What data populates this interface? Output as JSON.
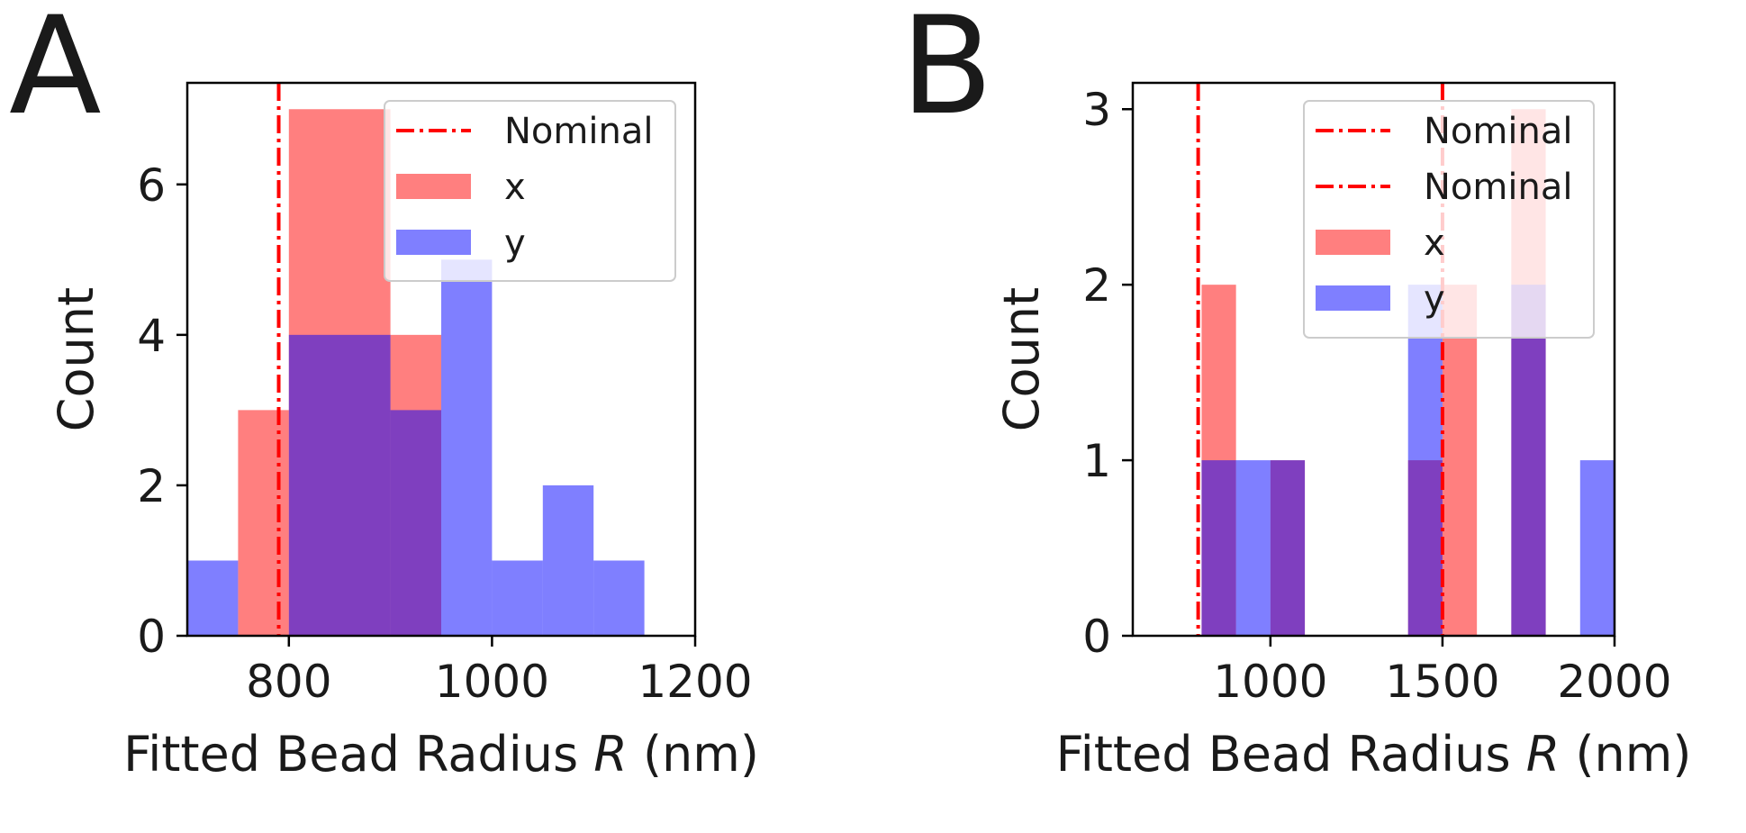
{
  "figure": {
    "panels": [
      "A",
      "B"
    ]
  },
  "colors": {
    "x": "#ff0000",
    "y": "#0000ff",
    "nominal": "#ff0000",
    "bar_alpha": 0.5,
    "axis": "#000000"
  },
  "chart_data": [
    {
      "panel": "A",
      "type": "bar",
      "histogram": true,
      "xlabel": "Fitted Bead Radius R (nm)",
      "xlabel_parts": {
        "before": "Fitted Bead Radius ",
        "italic": "R",
        "after": " (nm)"
      },
      "ylabel": "Count",
      "xlim": [
        700,
        1200
      ],
      "ylim": [
        0,
        7.35
      ],
      "xticks": [
        800,
        1000,
        1200
      ],
      "yticks": [
        0,
        2,
        4,
        6
      ],
      "legend_position": "upper right",
      "grid": false,
      "nominal_lines": [
        790
      ],
      "legend": [
        "Nominal",
        "x",
        "y"
      ],
      "series": [
        {
          "name": "x",
          "color": "#ff0000",
          "bins": [
            [
              750,
              800,
              3
            ],
            [
              800,
              900,
              7
            ],
            [
              900,
              950,
              4
            ]
          ]
        },
        {
          "name": "y",
          "color": "#0000ff",
          "bins": [
            [
              700,
              750,
              1
            ],
            [
              800,
              900,
              4
            ],
            [
              900,
              950,
              3
            ],
            [
              950,
              1000,
              5
            ],
            [
              1000,
              1050,
              1
            ],
            [
              1050,
              1100,
              2
            ],
            [
              1100,
              1150,
              1
            ]
          ]
        }
      ]
    },
    {
      "panel": "B",
      "type": "bar",
      "histogram": true,
      "xlabel": "Fitted Bead Radius R (nm)",
      "xlabel_parts": {
        "before": "Fitted Bead Radius ",
        "italic": "R",
        "after": " (nm)"
      },
      "ylabel": "Count",
      "xlim": [
        600,
        2000
      ],
      "ylim": [
        0,
        3.15
      ],
      "xticks": [
        1000,
        1500,
        2000
      ],
      "yticks": [
        0,
        1,
        2,
        3
      ],
      "legend_position": "upper right",
      "grid": false,
      "nominal_lines": [
        790,
        1500
      ],
      "legend": [
        "Nominal",
        "Nominal",
        "x",
        "y"
      ],
      "series": [
        {
          "name": "x",
          "color": "#ff0000",
          "bins": [
            [
              800,
              900,
              2
            ],
            [
              1000,
              1100,
              1
            ],
            [
              1400,
              1500,
              1
            ],
            [
              1500,
              1600,
              2
            ],
            [
              1700,
              1800,
              3
            ]
          ]
        },
        {
          "name": "y",
          "color": "#0000ff",
          "bins": [
            [
              800,
              900,
              1
            ],
            [
              900,
              1000,
              1
            ],
            [
              1000,
              1100,
              1
            ],
            [
              1400,
              1500,
              2
            ],
            [
              1700,
              1800,
              2
            ],
            [
              1900,
              2000,
              1
            ]
          ]
        }
      ]
    }
  ]
}
